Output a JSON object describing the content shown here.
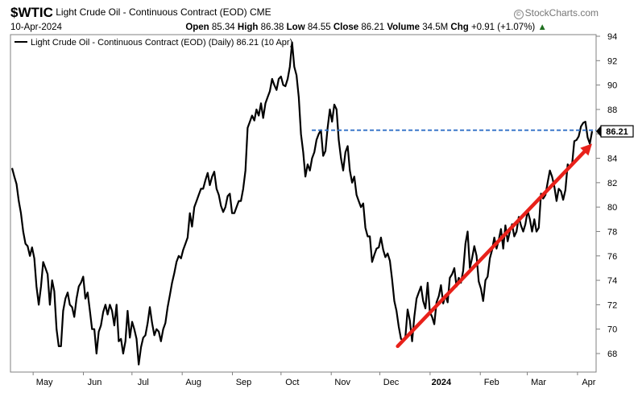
{
  "header": {
    "symbol": "$WTIC",
    "name": "Light Crude Oil - Continuous Contract (EOD)",
    "exchange": "CME",
    "brand": "StockCharts.com",
    "date": "10-Apr-2024",
    "open_label": "Open",
    "open": "85.34",
    "high_label": "High",
    "high": "86.38",
    "low_label": "Low",
    "low": "84.55",
    "close_label": "Close",
    "close": "86.21",
    "volume_label": "Volume",
    "volume": "34.5M",
    "chg_label": "Chg",
    "chg": "+0.91 (+1.07%)"
  },
  "colors": {
    "price": "#000000",
    "trend_arrow": "#e8211a",
    "resistance": "#2f6fc7",
    "up": "#1f6f1f"
  },
  "chart_data": {
    "type": "line",
    "title": "Light Crude Oil - Continuous Contract (EOD) (Daily) 86.21 (10 Apr)",
    "legend": "top-left",
    "last_value_label": "86.21",
    "ylim": [
      66.5,
      94
    ],
    "y_ticks": [
      68,
      70,
      72,
      74,
      76,
      78,
      80,
      82,
      84,
      86,
      88,
      90,
      92,
      94
    ],
    "x_month_labels": [
      "May",
      "Jun",
      "Jul",
      "Aug",
      "Sep",
      "Oct",
      "Nov",
      "Dec",
      "2024",
      "Feb",
      "Mar",
      "Apr"
    ],
    "series": [
      {
        "values": [
          83.2,
          82.5,
          81.9,
          80.5,
          79.5,
          78.0,
          77.0,
          76.8,
          76.0,
          76.7,
          75.8,
          73.5,
          72.0,
          73.5,
          75.5,
          75.0,
          74.5,
          72.0,
          74.0,
          73.1,
          70.0,
          68.6,
          68.6,
          71.5,
          72.5,
          73.0,
          72.0,
          71.8,
          71.0,
          72.5,
          73.5,
          73.8,
          74.3,
          72.5,
          73.0,
          71.5,
          70.0,
          70.0,
          68.0,
          69.8,
          70.3,
          71.4,
          72.0,
          71.2,
          72.0,
          71.5,
          70.3,
          72.0,
          69.0,
          69.2,
          68.0,
          69.0,
          71.5,
          69.3,
          70.6,
          70.0,
          69.2,
          67.1,
          68.5,
          69.3,
          69.5,
          70.5,
          71.8,
          70.5,
          69.5,
          70.0,
          69.8,
          69.0,
          70.0,
          70.5,
          71.8,
          72.8,
          73.8,
          74.6,
          75.5,
          76.0,
          75.8,
          76.5,
          77.0,
          77.5,
          79.5,
          78.4,
          80.0,
          80.5,
          81.0,
          81.5,
          81.5,
          82.2,
          82.8,
          81.8,
          82.5,
          82.9,
          81.5,
          81.0,
          80.1,
          79.6,
          80.0,
          80.9,
          81.1,
          79.5,
          79.5,
          80.0,
          80.5,
          80.5,
          81.5,
          83.0,
          86.5,
          87.0,
          87.5,
          87.1,
          88.0,
          87.5,
          88.5,
          87.3,
          88.5,
          89.0,
          89.5,
          90.5,
          90.0,
          89.6,
          90.5,
          90.7,
          90.0,
          89.9,
          90.5,
          91.5,
          93.5,
          91.5,
          90.8,
          89.0,
          86.0,
          84.5,
          82.5,
          83.5,
          83.0,
          84.0,
          84.5,
          85.5,
          86.0,
          86.3,
          84.2,
          84.6,
          86.5,
          88.0,
          87.0,
          88.4,
          88.0,
          85.5,
          84.0,
          83.0,
          84.5,
          85.0,
          83.0,
          82.0,
          82.5,
          81.0,
          80.5,
          80.0,
          80.3,
          78.3,
          77.6,
          77.6,
          75.5,
          76.1,
          76.6,
          76.7,
          77.5,
          76.5,
          75.9,
          76.2,
          75.6,
          74.1,
          72.3,
          71.5,
          70.2,
          69.2,
          69.1,
          69.4,
          71.6,
          70.7,
          69.0,
          71.0,
          72.5,
          73.0,
          73.5,
          72.3,
          71.7,
          73.8,
          71.4,
          71.0,
          70.4,
          72.2,
          72.7,
          73.6,
          72.1,
          72.8,
          72.2,
          74.2,
          74.5,
          75.0,
          73.5,
          74.2,
          73.8,
          74.8,
          77.0,
          78.0,
          75.0,
          75.8,
          76.8,
          76.0,
          73.9,
          73.3,
          72.3,
          74.0,
          74.3,
          75.8,
          76.5,
          77.5,
          76.6,
          77.3,
          78.2,
          76.6,
          78.5,
          77.2,
          78.0,
          78.6,
          77.6,
          78.0,
          79.2,
          78.5,
          78.0,
          78.6,
          79.7,
          79.0,
          78.0,
          79.0,
          78.0,
          78.3,
          81.1,
          80.7,
          81.0,
          82.0,
          83.0,
          82.5,
          81.7,
          80.5,
          81.5,
          81.3,
          80.6,
          81.4,
          83.5,
          83.2,
          83.5,
          85.4,
          85.5,
          85.8,
          86.6,
          86.9,
          87.0,
          85.7,
          85.2,
          86.21
        ]
      }
    ],
    "trend_line": {
      "from": {
        "x": "2023-12-12",
        "y": 68.6
      },
      "to": {
        "x": "2024-04-10",
        "y": 85.2
      }
    },
    "resistance_level": {
      "y": 86.3,
      "from_x": "2023-10-20"
    }
  }
}
